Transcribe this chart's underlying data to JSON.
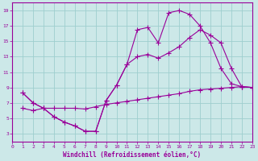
{
  "xlabel": "Windchill (Refroidissement éolien,°C)",
  "ylabel": "",
  "bg_color": "#cce8e8",
  "grid_color": "#9ecece",
  "line_color": "#990099",
  "xlim": [
    0,
    23
  ],
  "ylim": [
    2,
    20
  ],
  "xticks": [
    0,
    1,
    2,
    3,
    4,
    5,
    6,
    7,
    8,
    9,
    10,
    11,
    12,
    13,
    14,
    15,
    16,
    17,
    18,
    19,
    20,
    21,
    22,
    23
  ],
  "yticks": [
    3,
    5,
    7,
    9,
    11,
    13,
    15,
    17,
    19
  ],
  "line1_x": [
    1,
    2,
    3,
    4,
    5,
    6,
    7,
    8,
    9,
    10,
    11,
    12,
    13,
    14,
    15,
    16,
    17,
    18,
    19,
    20,
    21,
    22,
    23
  ],
  "line1_y": [
    8.3,
    7.0,
    6.3,
    5.2,
    4.5,
    4.0,
    3.3,
    3.3,
    7.3,
    9.3,
    12.0,
    16.5,
    16.8,
    14.8,
    18.7,
    19.0,
    18.5,
    17.0,
    14.8,
    11.5,
    9.5,
    9.1,
    9.0
  ],
  "line2_x": [
    1,
    2,
    3,
    4,
    5,
    6,
    7,
    8,
    9,
    10,
    11,
    12,
    13,
    14,
    15,
    16,
    17,
    18,
    19,
    20,
    21,
    22,
    23
  ],
  "line2_y": [
    8.3,
    7.0,
    6.3,
    5.2,
    4.5,
    4.0,
    3.3,
    3.3,
    7.3,
    9.3,
    12.0,
    13.0,
    13.3,
    12.8,
    13.5,
    14.3,
    15.5,
    16.5,
    15.8,
    14.8,
    11.5,
    9.1,
    9.0
  ],
  "line3_x": [
    1,
    2,
    3,
    4,
    5,
    6,
    7,
    8,
    9,
    10,
    11,
    12,
    13,
    14,
    15,
    16,
    17,
    18,
    19,
    20,
    21,
    22,
    23
  ],
  "line3_y": [
    6.3,
    6.0,
    6.3,
    6.3,
    6.3,
    6.3,
    6.2,
    6.5,
    6.8,
    7.0,
    7.2,
    7.4,
    7.6,
    7.8,
    8.0,
    8.2,
    8.5,
    8.7,
    8.8,
    8.9,
    9.0,
    9.1,
    9.0
  ]
}
